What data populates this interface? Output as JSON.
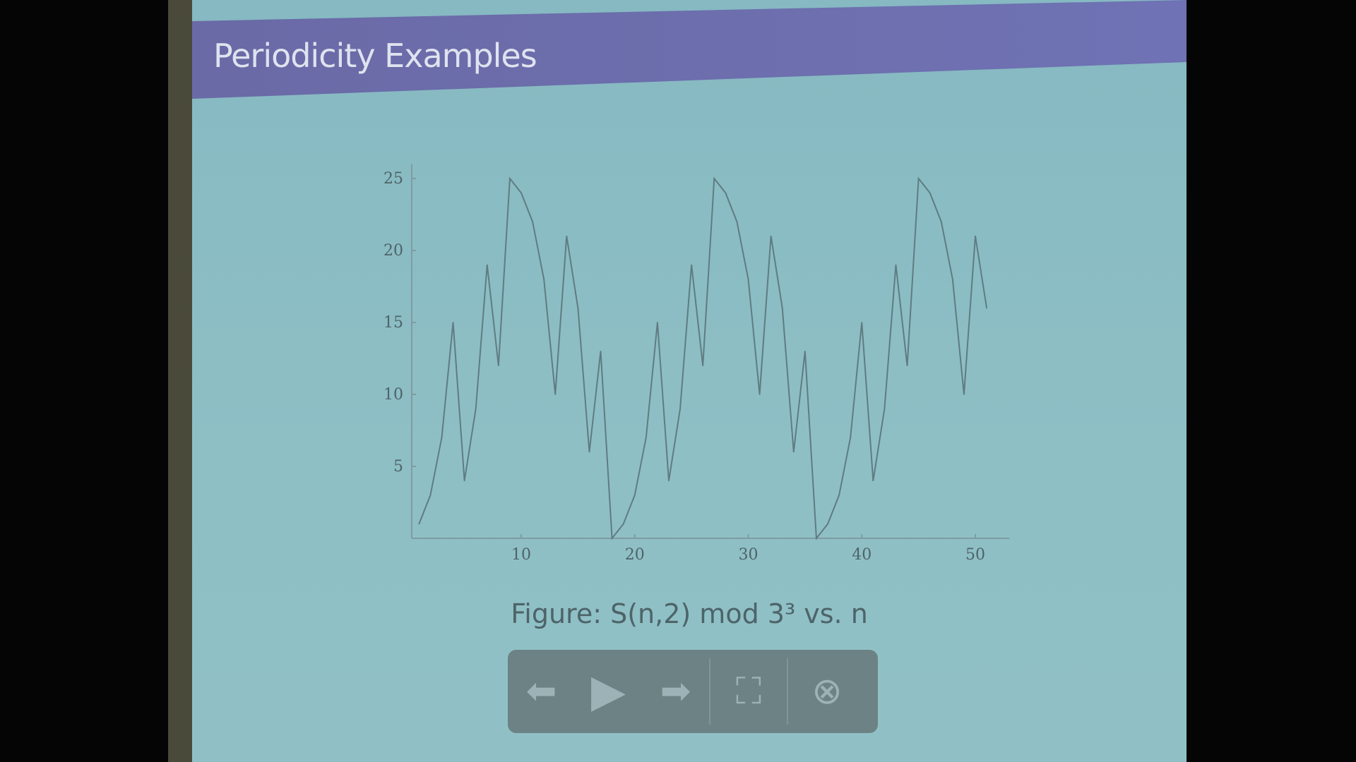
{
  "slide": {
    "title": "Periodicity Examples",
    "caption": "Figure: S(n,2)  mod 3³ vs. n"
  },
  "controls": {
    "prev_icon": "arrow-left-icon",
    "play_icon": "play-icon",
    "next_icon": "arrow-right-icon",
    "fullscreen_icon": "fullscreen-icon",
    "close_icon": "close-circle-icon"
  },
  "colors": {
    "header": "#6c6eae",
    "background": "#8ebfc5",
    "line": "#5f7c82"
  },
  "chart_data": {
    "type": "line",
    "title": "",
    "xlabel": "",
    "ylabel": "",
    "xlim": [
      0,
      53
    ],
    "ylim": [
      0,
      26
    ],
    "x_ticks": [
      10,
      20,
      30,
      40,
      50
    ],
    "y_ticks": [
      5,
      10,
      15,
      20,
      25
    ],
    "grid": false,
    "x": [
      1,
      2,
      3,
      4,
      5,
      6,
      7,
      8,
      9,
      10,
      11,
      12,
      13,
      14,
      15,
      16,
      17,
      18,
      19,
      20,
      21,
      22,
      23,
      24,
      25,
      26,
      27,
      28,
      29,
      30,
      31,
      32,
      33,
      34,
      35,
      36,
      37,
      38,
      39,
      40,
      41,
      42,
      43,
      44,
      45,
      46,
      47,
      48,
      49,
      50,
      51
    ],
    "y": [
      1,
      3,
      7,
      15,
      4,
      9,
      19,
      12,
      25,
      24,
      22,
      18,
      10,
      21,
      16,
      6,
      13,
      0,
      1,
      3,
      7,
      15,
      4,
      9,
      19,
      12,
      25,
      24,
      22,
      18,
      10,
      21,
      16,
      6,
      13,
      0,
      1,
      3,
      7,
      15,
      4,
      9,
      19,
      12,
      25,
      24,
      22,
      18,
      10,
      21,
      16
    ]
  }
}
